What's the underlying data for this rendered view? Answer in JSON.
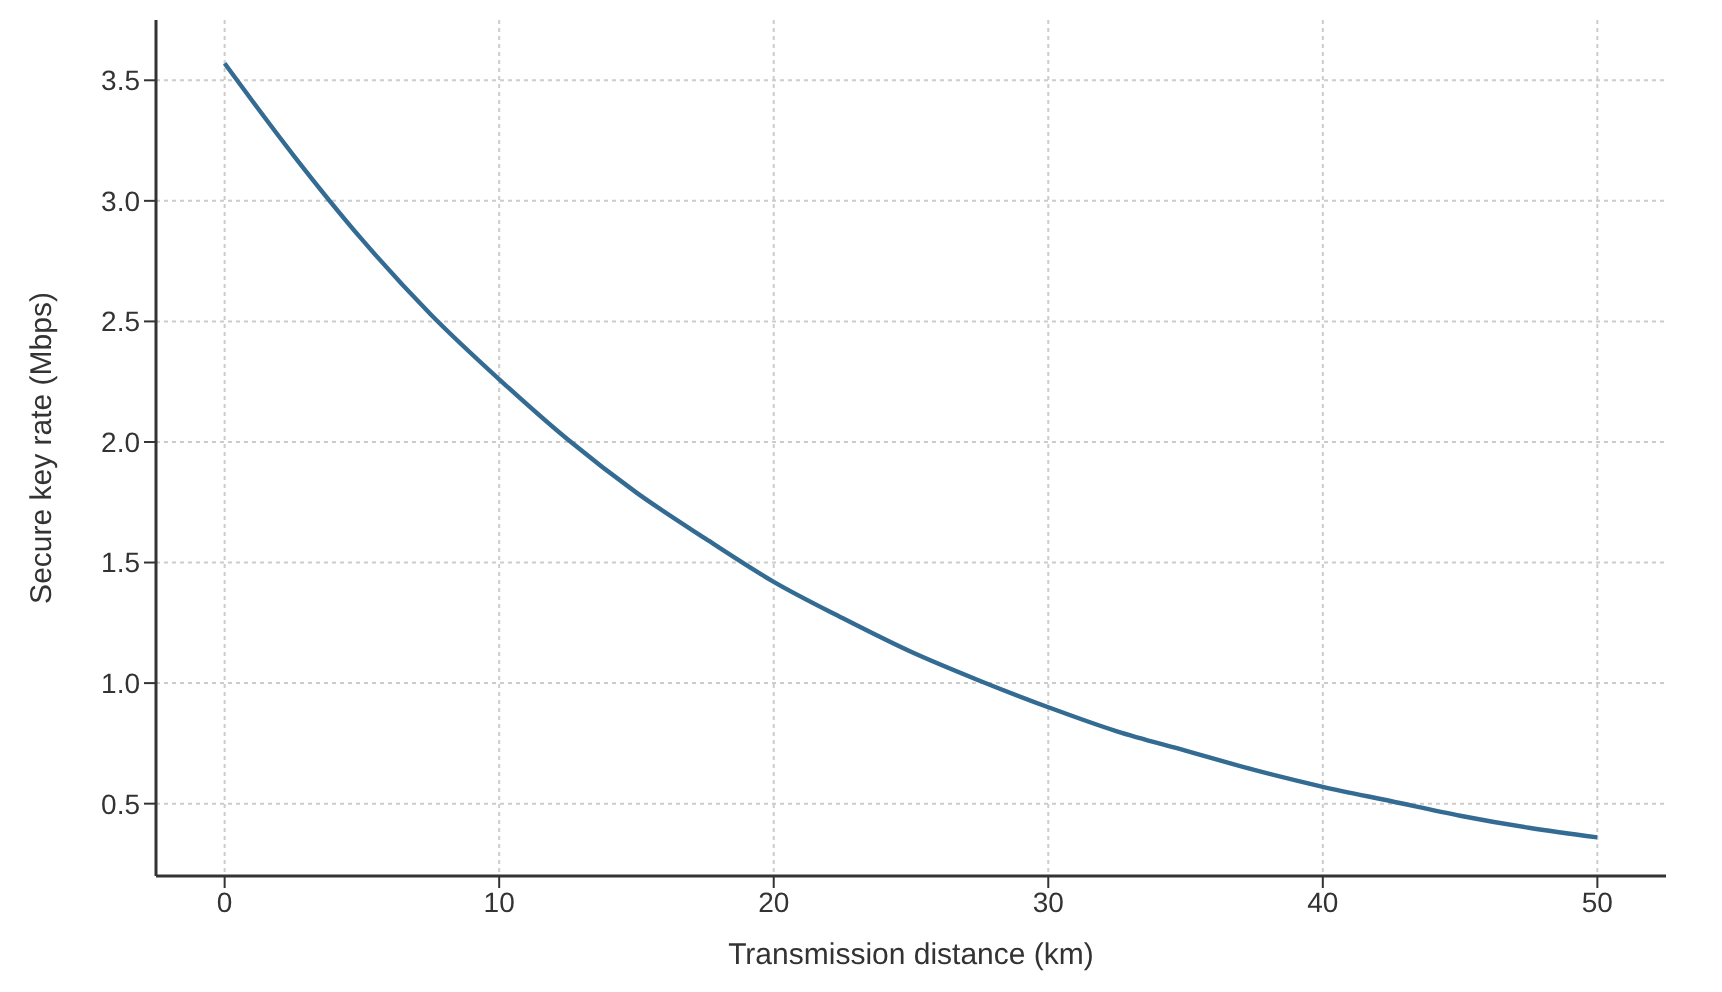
{
  "chart_data": {
    "type": "line",
    "xlabel": "Transmission distance (km)",
    "ylabel": "Secure key rate (Mbps)",
    "x": [
      0,
      2.5,
      5,
      7.5,
      10,
      12.5,
      15,
      17.5,
      20,
      22.5,
      25,
      27.5,
      30,
      32.5,
      35,
      37.5,
      40,
      42.5,
      45,
      47.5,
      50
    ],
    "series": [
      {
        "color": "#336b93",
        "values": [
          3.57,
          3.19,
          2.84,
          2.53,
          2.26,
          2.01,
          1.79,
          1.6,
          1.42,
          1.27,
          1.13,
          1.01,
          0.9,
          0.8,
          0.72,
          0.64,
          0.57,
          0.51,
          0.45,
          0.4,
          0.36
        ]
      }
    ],
    "xlim": [
      -2.5,
      52.5
    ],
    "xticks": [
      0,
      10,
      20,
      30,
      40,
      50
    ],
    "ylim": [
      0.2,
      3.75
    ],
    "yticks": [
      0.5,
      {
        "value": 1,
        "label": "1.0"
      },
      1.5,
      {
        "value": 2,
        "label": "2.0"
      },
      2.5,
      {
        "value": 3,
        "label": "3.0"
      },
      3.5
    ],
    "grid": true,
    "marker": "none",
    "line_style": "solid"
  }
}
